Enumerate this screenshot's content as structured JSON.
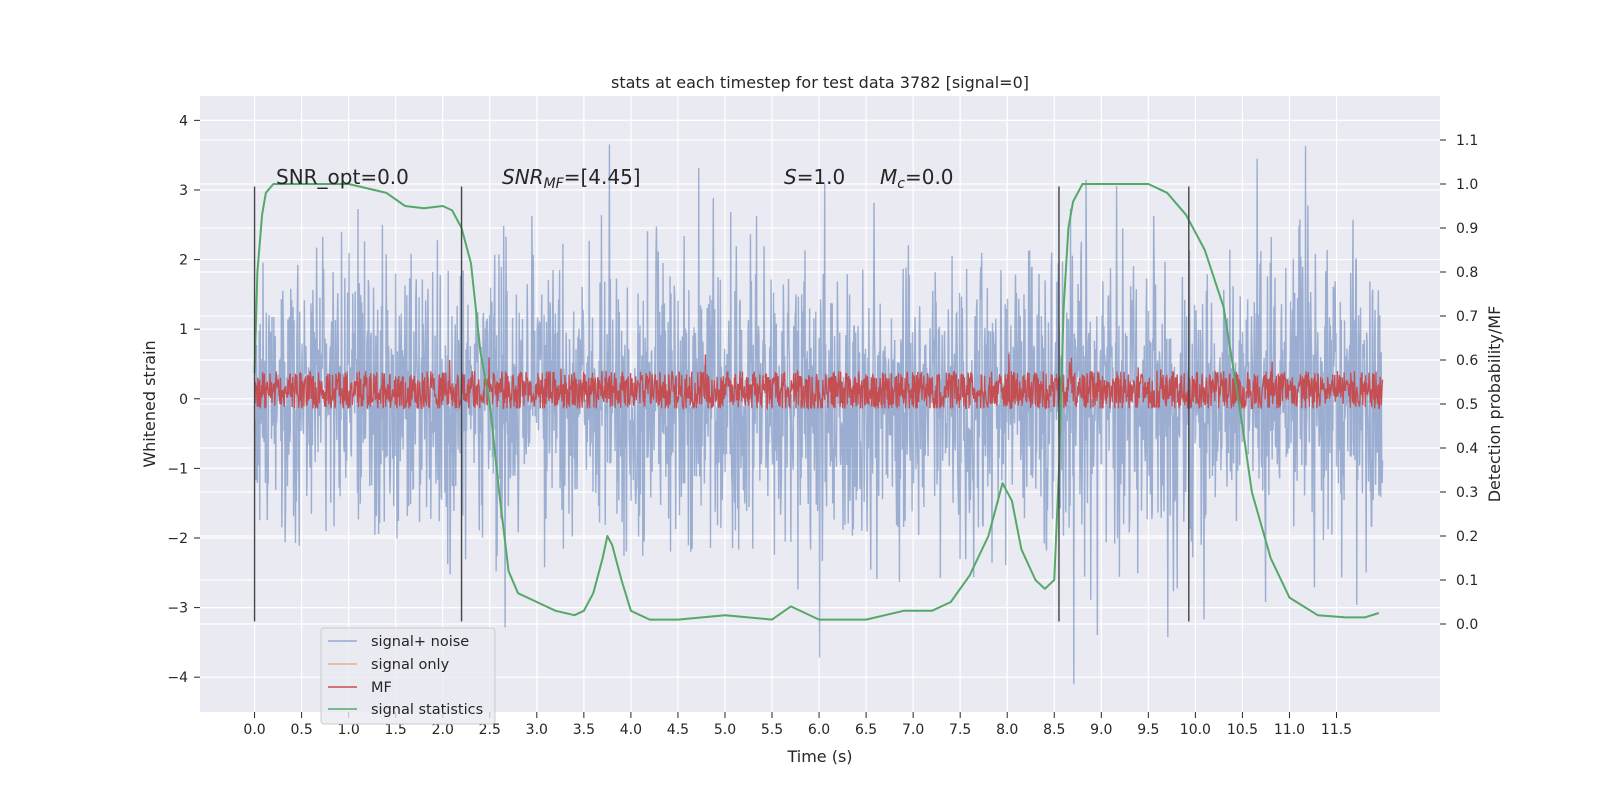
{
  "chart_data": {
    "type": "line",
    "title": "stats at each timestep for test data 3782 [signal=0]",
    "xlabel": "Time (s)",
    "ylabel": "Whitened strain",
    "y2label": "Detection probability/MF",
    "xlim": [
      -0.58,
      12.6
    ],
    "ylim": [
      -4.5,
      4.35
    ],
    "y2lim": [
      -0.2,
      1.2
    ],
    "xticks": [
      0.0,
      0.5,
      1.0,
      1.5,
      2.0,
      2.5,
      3.0,
      3.5,
      4.0,
      4.5,
      5.0,
      5.5,
      6.0,
      6.5,
      7.0,
      7.5,
      8.0,
      8.5,
      9.0,
      9.5,
      10.0,
      10.5,
      11.0,
      11.5
    ],
    "xtick_labels": [
      "0.0",
      "0.5",
      "1.0",
      "1.5",
      "2.0",
      "2.5",
      "3.0",
      "3.5",
      "4.0",
      "4.5",
      "5.0",
      "5.5",
      "6.0",
      "6.5",
      "7.0",
      "7.5",
      "8.0",
      "8.5",
      "9.0",
      "9.5",
      "10.0",
      "10.5",
      "11.0",
      "11.5"
    ],
    "yticks": [
      -4,
      -3,
      -2,
      -1,
      0,
      1,
      2,
      3,
      4
    ],
    "ytick_labels": [
      "−4",
      "−3",
      "−2",
      "−1",
      "0",
      "1",
      "2",
      "3",
      "4"
    ],
    "y2ticks": [
      0.0,
      0.1,
      0.2,
      0.3,
      0.4,
      0.5,
      0.6,
      0.7,
      0.8,
      0.9,
      1.0,
      1.1
    ],
    "y2tick_labels": [
      "0.0",
      "0.1",
      "0.2",
      "0.3",
      "0.4",
      "0.5",
      "0.6",
      "0.7",
      "0.8",
      "0.9",
      "1.0",
      "1.1"
    ],
    "grid": true,
    "legend_placement": "lower-left",
    "series": [
      {
        "name": "signal+ noise",
        "color": "#4c72b0",
        "axis": "left",
        "kind": "noise",
        "t_start": 0.0,
        "t_end": 11.99,
        "envelope_min": -4.1,
        "envelope_max": 3.93
      },
      {
        "name": "signal only",
        "color": "#dd8452",
        "axis": "left",
        "kind": "flat",
        "values": []
      },
      {
        "name": "MF",
        "color": "#c44e52",
        "axis": "right",
        "kind": "noise",
        "t_start": 0.0,
        "t_end": 11.99,
        "base": 0.5,
        "range_min": 0.49,
        "range_max": 0.63
      },
      {
        "name": "signal statistics",
        "color": "#55a868",
        "axis": "right",
        "x": [
          0.0,
          0.03,
          0.08,
          0.12,
          0.2,
          0.3,
          0.6,
          1.0,
          1.2,
          1.4,
          1.6,
          1.8,
          2.0,
          2.1,
          2.2,
          2.3,
          2.4,
          2.5,
          2.6,
          2.7,
          2.8,
          3.0,
          3.2,
          3.4,
          3.5,
          3.6,
          3.7,
          3.75,
          3.8,
          3.9,
          4.0,
          4.2,
          4.5,
          5.0,
          5.5,
          5.7,
          6.0,
          6.5,
          6.9,
          7.2,
          7.4,
          7.6,
          7.8,
          7.95,
          8.05,
          8.15,
          8.3,
          8.4,
          8.5,
          8.55,
          8.6,
          8.65,
          8.7,
          8.8,
          9.0,
          9.5,
          9.7,
          9.9,
          10.1,
          10.3,
          10.5,
          10.6,
          10.8,
          11.0,
          11.3,
          11.6,
          11.8,
          11.95
        ],
        "values": [
          0.57,
          0.8,
          0.93,
          0.98,
          1.0,
          1.0,
          1.0,
          1.0,
          0.99,
          0.98,
          0.95,
          0.945,
          0.95,
          0.94,
          0.9,
          0.82,
          0.62,
          0.5,
          0.3,
          0.12,
          0.07,
          0.05,
          0.03,
          0.02,
          0.03,
          0.07,
          0.15,
          0.2,
          0.18,
          0.1,
          0.03,
          0.01,
          0.01,
          0.02,
          0.01,
          0.04,
          0.01,
          0.01,
          0.03,
          0.03,
          0.05,
          0.11,
          0.2,
          0.32,
          0.28,
          0.17,
          0.1,
          0.08,
          0.1,
          0.35,
          0.72,
          0.9,
          0.96,
          1.0,
          1.0,
          1.0,
          0.98,
          0.93,
          0.85,
          0.72,
          0.45,
          0.3,
          0.15,
          0.06,
          0.02,
          0.015,
          0.015,
          0.025
        ]
      }
    ],
    "vlines": [
      0.0,
      2.2,
      8.55,
      9.93
    ],
    "vline_range": [
      -3.2,
      3.05
    ],
    "annotations": {
      "snr_opt": "SNR_opt=0.0",
      "snr_mf_base": "SNR",
      "snr_mf_sub": "MF",
      "snr_mf_val": "=[4.45]",
      "s_var": "S",
      "s_val": "=1.0",
      "mc_base": "M",
      "mc_sub": "c",
      "mc_val": "=0.0"
    }
  }
}
